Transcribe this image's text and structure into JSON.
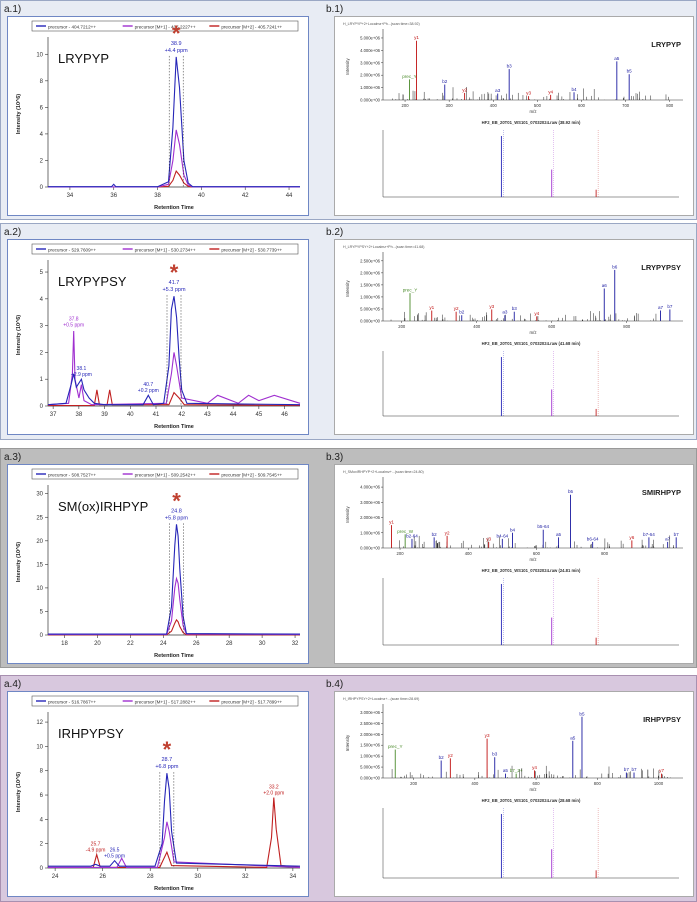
{
  "colors": {
    "precursor": "#2626b8",
    "m1": "#a030d0",
    "m2": "#c02020",
    "star": "#c04030",
    "b_ion": "#1a1aa0",
    "y_ion": "#c01010",
    "neutral": "#4a8a2a",
    "row_bg_blue": "#e8ecf4",
    "row_bg_gray": "#bdbdbd",
    "row_bg_pink": "#d8c8de"
  },
  "rows": [
    {
      "label_a": "a.1)",
      "label_b": "b.1)",
      "peptide": "LRYPYP",
      "legend": [
        "precursor - 404.7212++",
        "precursor [M+1] - 405.2227++",
        "precursor [M+2] - 405.7241++"
      ],
      "peak_label": [
        "38.9",
        "+4.4 ppm"
      ],
      "spectrum_header": "H_LRYPYP+2+Localmz+Ph...(scan time=38.92)",
      "mirror_title": "HF2_EB_20T01_WS101_07032024.raw (38.92 min)"
    },
    {
      "label_a": "a.2)",
      "label_b": "b.2)",
      "peptide": "LRYPYPSY",
      "legend": [
        "precursor - 529.7609++",
        "precursor [M+1] - 530.2734++",
        "precursor [M+2] - 530.7739++"
      ],
      "peak_label": [
        "41.7",
        "+5.3 ppm"
      ],
      "side_peaks": [
        [
          "37.8",
          "+0.5 ppm"
        ],
        [
          "38.1",
          "+2.9 ppm"
        ],
        [
          "40.7",
          "+0.2 ppm"
        ]
      ],
      "spectrum_header": "H_LRYPYPSY+2+Localmz+Ph...(scan time=41.68)",
      "mirror_title": "HF2_EB_20T01_WS101_07032024.raw (41.68 min)"
    },
    {
      "label_a": "a.3)",
      "label_b": "b.3)",
      "peptide": "SM(ox)IRHPYP",
      "legend": [
        "precursor - 508.7527++",
        "precursor [M+1] - 509.2542++",
        "precursor [M+2] - 509.7545++"
      ],
      "peak_label": [
        "24.8",
        "+5.8 ppm"
      ],
      "spectrum_header": "H_SMoxIRHPYP+2+Localmz+...(scan time=24.80)",
      "mirror_title": "HF2_EB_20T01_WS101_07032024.raw (24.81 min)"
    },
    {
      "label_a": "a.4)",
      "label_b": "b.4)",
      "peptide": "IRHPYPSY",
      "legend": [
        "precursor - 516.7867++",
        "precursor [M+1] - 517.2882++",
        "precursor [M+2] - 517.7899++"
      ],
      "peak_label": [
        "28.7",
        "+6.8 ppm"
      ],
      "side_peaks": [
        [
          "25.7",
          "-4.9 ppm"
        ],
        [
          "26.5",
          "+0.5 ppm"
        ],
        [
          "33.2",
          "+2.0 ppm"
        ]
      ],
      "spectrum_header": "H_IRHPYPSY+2+Localmz+...(scan time=28.69)",
      "mirror_title": "HF2_EB_20T01_WS101_07032024.raw (28.68 min)"
    }
  ],
  "chart_data": [
    {
      "type": "line",
      "panel": "a.1",
      "title": "",
      "xlabel": "Retention Time",
      "ylabel": "Intensity (10^6)",
      "xlim": [
        33,
        44.5
      ],
      "ylim": [
        0,
        11
      ],
      "x_ticks": [
        34,
        36,
        38,
        40,
        42,
        44
      ],
      "y_ticks": [
        0,
        2,
        4,
        6,
        8,
        10
      ],
      "series": [
        {
          "name": "precursor - 404.7212++",
          "x": [
            33,
            35.9,
            36.0,
            36.1,
            38.0,
            38.5,
            38.7,
            38.85,
            39.0,
            39.2,
            39.4,
            39.6,
            44.5
          ],
          "y": [
            0.02,
            0.02,
            0.2,
            0.02,
            0.02,
            0.4,
            4.5,
            9.8,
            7.5,
            2.0,
            0.3,
            0.02,
            0.02
          ]
        },
        {
          "name": "precursor [M+1] - 405.2227++",
          "x": [
            33,
            38.0,
            38.5,
            38.7,
            38.85,
            39.0,
            39.2,
            39.4,
            39.6,
            44.5
          ],
          "y": [
            0.01,
            0.01,
            0.2,
            2.0,
            4.3,
            3.2,
            0.9,
            0.15,
            0.01,
            0.01
          ]
        },
        {
          "name": "precursor [M+2] - 405.7241++",
          "x": [
            33,
            38.0,
            38.5,
            38.7,
            38.85,
            39.0,
            39.2,
            39.4,
            39.6,
            44.5
          ],
          "y": [
            0.0,
            0.0,
            0.05,
            0.5,
            1.2,
            0.9,
            0.3,
            0.05,
            0.0,
            0.0
          ]
        }
      ]
    },
    {
      "type": "line",
      "panel": "a.2",
      "title": "",
      "xlabel": "Retention Time",
      "ylabel": "Intensity (10^6)",
      "xlim": [
        36.8,
        46.6
      ],
      "ylim": [
        0,
        5.3
      ],
      "x_ticks": [
        37,
        38,
        39,
        40,
        41,
        42,
        43,
        44,
        45,
        46
      ],
      "y_ticks": [
        0,
        1,
        2,
        3,
        4,
        5
      ],
      "series": [
        {
          "name": "precursor - 529.7609++",
          "x": [
            36.8,
            37.5,
            37.7,
            37.8,
            37.9,
            38.1,
            38.2,
            38.4,
            38.6,
            39.0,
            40.5,
            40.7,
            40.9,
            41.3,
            41.5,
            41.6,
            41.7,
            41.8,
            41.9,
            42.0,
            42.2,
            46.6
          ],
          "y": [
            0.05,
            0.1,
            0.8,
            1.2,
            0.7,
            1.0,
            0.6,
            0.3,
            0.1,
            0.05,
            0.05,
            0.4,
            0.05,
            0.1,
            1.5,
            3.6,
            4.1,
            3.3,
            1.8,
            0.6,
            0.1,
            0.05
          ]
        },
        {
          "name": "precursor [M+1] - 530.2734++",
          "x": [
            36.8,
            37.6,
            37.75,
            37.8,
            37.85,
            38.0,
            38.1,
            38.2,
            38.5,
            41.4,
            41.6,
            41.7,
            41.8,
            42.0,
            43.0,
            43.4,
            44.2,
            44.6,
            45.0,
            45.6,
            46.6
          ],
          "y": [
            0.05,
            0.1,
            1.2,
            2.8,
            1.0,
            0.3,
            0.8,
            0.2,
            0.05,
            0.1,
            1.2,
            2.0,
            1.5,
            0.3,
            0.1,
            0.4,
            0.1,
            0.4,
            0.2,
            0.4,
            0.1
          ]
        },
        {
          "name": "precursor [M+2] - 530.7739++",
          "x": [
            36.8,
            38.6,
            38.7,
            38.8,
            39.1,
            39.2,
            39.3,
            41.5,
            41.7,
            41.9,
            42.1,
            46.6
          ],
          "y": [
            0.02,
            0.02,
            0.6,
            0.05,
            0.05,
            0.6,
            0.05,
            0.05,
            0.5,
            0.3,
            0.05,
            0.02
          ]
        }
      ]
    },
    {
      "type": "line",
      "panel": "a.3",
      "title": "",
      "xlabel": "Retention Time",
      "ylabel": "Intensity (10^6)",
      "xlim": [
        17,
        32.3
      ],
      "ylim": [
        0,
        31
      ],
      "x_ticks": [
        18,
        20,
        22,
        24,
        26,
        28,
        30,
        32
      ],
      "y_ticks": [
        0,
        5,
        10,
        15,
        20,
        25,
        30
      ],
      "series": [
        {
          "name": "precursor - 508.7527++",
          "x": [
            17,
            24.2,
            24.5,
            24.7,
            24.8,
            24.9,
            25.0,
            25.2,
            25.4,
            32.3
          ],
          "y": [
            0.2,
            0.2,
            6.0,
            19.0,
            23.5,
            21.0,
            14.0,
            4.0,
            0.3,
            0.2
          ]
        },
        {
          "name": "precursor [M+1] - 509.2542++",
          "x": [
            17,
            24.2,
            24.5,
            24.7,
            24.8,
            24.9,
            25.0,
            25.2,
            25.4,
            32.3
          ],
          "y": [
            0.1,
            0.1,
            3.0,
            10.0,
            12.0,
            11.0,
            7.5,
            2.0,
            0.2,
            0.1
          ]
        },
        {
          "name": "precursor [M+2] - 509.7545++",
          "x": [
            17,
            24.2,
            24.5,
            24.7,
            24.8,
            24.9,
            25.0,
            25.2,
            25.4,
            32.3
          ],
          "y": [
            0.05,
            0.05,
            0.8,
            2.5,
            3.2,
            2.8,
            1.8,
            0.5,
            0.05,
            0.05
          ]
        }
      ]
    },
    {
      "type": "line",
      "panel": "a.4",
      "title": "",
      "xlabel": "Retention Time",
      "ylabel": "Intensity (10^6)",
      "xlim": [
        23.7,
        34.3
      ],
      "ylim": [
        0,
        12.5
      ],
      "x_ticks": [
        24,
        26,
        28,
        30,
        32,
        34
      ],
      "y_ticks": [
        0,
        2,
        4,
        6,
        8,
        10,
        12
      ],
      "series": [
        {
          "name": "precursor - 516.7867++",
          "x": [
            23.7,
            25.5,
            25.7,
            25.9,
            26.3,
            26.5,
            26.7,
            28.2,
            28.5,
            28.6,
            28.7,
            28.8,
            28.9,
            29.1,
            34.3
          ],
          "y": [
            0.15,
            0.15,
            0.3,
            0.15,
            0.15,
            0.6,
            0.15,
            0.15,
            2.0,
            5.5,
            7.8,
            6.5,
            3.0,
            0.4,
            0.15
          ]
        },
        {
          "name": "precursor [M+1] - 517.2882++",
          "x": [
            23.7,
            26.6,
            26.8,
            27.0,
            28.3,
            28.6,
            28.7,
            28.8,
            29.0,
            34.3
          ],
          "y": [
            0.05,
            0.05,
            0.8,
            0.05,
            0.05,
            2.5,
            3.8,
            3.0,
            0.5,
            0.05
          ]
        },
        {
          "name": "precursor [M+2] - 517.7899++",
          "x": [
            23.7,
            25.6,
            25.75,
            25.9,
            28.4,
            28.7,
            28.9,
            32.9,
            33.1,
            33.2,
            33.3,
            33.5,
            34.3
          ],
          "y": [
            0.05,
            0.05,
            1.1,
            0.05,
            0.05,
            1.3,
            0.2,
            0.05,
            2.5,
            5.8,
            3.2,
            0.2,
            0.05
          ]
        }
      ]
    },
    {
      "type": "bar",
      "panel": "b.1",
      "xlabel": "m/z",
      "ylabel": "Intensity",
      "xlim": [
        150,
        830
      ],
      "ylim": [
        0,
        5200000.0
      ],
      "x_ticks": [
        200,
        300,
        400,
        500,
        600,
        700,
        800
      ],
      "y_ticks": [
        "0.000e+00",
        "1.000e+06",
        "2.000e+06",
        "3.000e+06",
        "4.000e+06",
        "5.000e+06"
      ],
      "annotated": [
        {
          "x": 226,
          "y": 4600000.0,
          "label": "y1",
          "ion": "y"
        },
        {
          "x": 210,
          "y": 1600000.0,
          "label": "prec_Y",
          "ion": "n"
        },
        {
          "x": 290,
          "y": 1200000.0,
          "label": "b2",
          "ion": "b"
        },
        {
          "x": 335,
          "y": 550000.0,
          "label": "y2",
          "ion": "y"
        },
        {
          "x": 410,
          "y": 500000.0,
          "label": "a3",
          "ion": "b"
        },
        {
          "x": 436,
          "y": 2400000.0,
          "label": "b3",
          "ion": "b"
        },
        {
          "x": 480,
          "y": 300000.0,
          "label": "y3",
          "ion": "y"
        },
        {
          "x": 530,
          "y": 400000.0,
          "label": "y4",
          "ion": "y"
        },
        {
          "x": 583,
          "y": 600000.0,
          "label": "b4",
          "ion": "b"
        },
        {
          "x": 680,
          "y": 3000000.0,
          "label": "a5",
          "ion": "b"
        },
        {
          "x": 708,
          "y": 2000000.0,
          "label": "b5",
          "ion": "b"
        }
      ]
    },
    {
      "type": "bar",
      "panel": "b.2",
      "xlabel": "m/z",
      "ylabel": "Intensity",
      "xlim": [
        150,
        950
      ],
      "ylim": [
        0,
        2800000.0
      ],
      "x_ticks": [
        200,
        400,
        600,
        800
      ],
      "y_ticks": [
        "0.000e+00",
        "5.000e+05",
        "1.000e+06",
        "1.500e+06",
        "2.000e+06",
        "2.500e+06"
      ],
      "annotated": [
        {
          "x": 222,
          "y": 1200000.0,
          "label": "prec_Y",
          "ion": "n"
        },
        {
          "x": 280,
          "y": 450000.0,
          "label": "y1",
          "ion": "y"
        },
        {
          "x": 345,
          "y": 400000.0,
          "label": "y2",
          "ion": "y"
        },
        {
          "x": 360,
          "y": 250000.0,
          "label": "b2",
          "ion": "b"
        },
        {
          "x": 440,
          "y": 500000.0,
          "label": "y3",
          "ion": "y"
        },
        {
          "x": 475,
          "y": 250000.0,
          "label": "a3",
          "ion": "b"
        },
        {
          "x": 500,
          "y": 400000.0,
          "label": "b3",
          "ion": "b"
        },
        {
          "x": 560,
          "y": 200000.0,
          "label": "y4",
          "ion": "y"
        },
        {
          "x": 740,
          "y": 1400000.0,
          "label": "a6",
          "ion": "b"
        },
        {
          "x": 768,
          "y": 2200000.0,
          "label": "b6",
          "ion": "b"
        },
        {
          "x": 890,
          "y": 450000.0,
          "label": "a7",
          "ion": "b"
        },
        {
          "x": 915,
          "y": 500000.0,
          "label": "b7",
          "ion": "b"
        }
      ]
    },
    {
      "type": "bar",
      "panel": "b.3",
      "xlabel": "m/z",
      "ylabel": "Intensity",
      "xlim": [
        150,
        1030
      ],
      "ylim": [
        0,
        4400000.0
      ],
      "x_ticks": [
        200,
        400,
        600,
        800
      ],
      "y_ticks": [
        "0.000e+00",
        "1.000e+06",
        "2.000e+06",
        "3.000e+06",
        "4.000e+06"
      ],
      "annotated": [
        {
          "x": 175,
          "y": 1500000.0,
          "label": "y1",
          "ion": "y"
        },
        {
          "x": 215,
          "y": 900000.0,
          "label": "prec_W",
          "ion": "n"
        },
        {
          "x": 235,
          "y": 600000.0,
          "label": "b2-64",
          "ion": "b"
        },
        {
          "x": 300,
          "y": 700000.0,
          "label": "b2",
          "ion": "b"
        },
        {
          "x": 338,
          "y": 800000.0,
          "label": "y2",
          "ion": "y"
        },
        {
          "x": 460,
          "y": 400000.0,
          "label": "y3",
          "ion": "y"
        },
        {
          "x": 500,
          "y": 600000.0,
          "label": "b4-64",
          "ion": "b"
        },
        {
          "x": 530,
          "y": 1000000.0,
          "label": "b4",
          "ion": "b"
        },
        {
          "x": 620,
          "y": 1200000.0,
          "label": "b5-64",
          "ion": "b"
        },
        {
          "x": 665,
          "y": 700000.0,
          "label": "a5",
          "ion": "b"
        },
        {
          "x": 700,
          "y": 3500000.0,
          "label": "b5",
          "ion": "b"
        },
        {
          "x": 765,
          "y": 400000.0,
          "label": "b6-64",
          "ion": "b"
        },
        {
          "x": 880,
          "y": 500000.0,
          "label": "y6",
          "ion": "y"
        },
        {
          "x": 930,
          "y": 700000.0,
          "label": "b7-64",
          "ion": "b"
        },
        {
          "x": 985,
          "y": 400000.0,
          "label": "a7",
          "ion": "b"
        },
        {
          "x": 1010,
          "y": 700000.0,
          "label": "b7",
          "ion": "b"
        }
      ]
    },
    {
      "type": "bar",
      "panel": "b.4",
      "xlabel": "m/z",
      "ylabel": "Intensity",
      "xlim": [
        100,
        1080
      ],
      "ylim": [
        0,
        3200000.0
      ],
      "x_ticks": [
        200,
        400,
        600,
        800,
        1000
      ],
      "y_ticks": [
        "0.000e+00",
        "5.000e+05",
        "1.000e+06",
        "1.500e+06",
        "2.000e+06",
        "2.500e+06",
        "3.000e+06"
      ],
      "annotated": [
        {
          "x": 140,
          "y": 1300000.0,
          "label": "prec_Y",
          "ion": "n"
        },
        {
          "x": 290,
          "y": 800000.0,
          "label": "b2",
          "ion": "b"
        },
        {
          "x": 320,
          "y": 900000.0,
          "label": "y2",
          "ion": "y"
        },
        {
          "x": 440,
          "y": 1800000.0,
          "label": "y3",
          "ion": "y"
        },
        {
          "x": 465,
          "y": 950000.0,
          "label": "b3",
          "ion": "b"
        },
        {
          "x": 500,
          "y": 200000.0,
          "label": "a5",
          "ion": "b"
        },
        {
          "x": 535,
          "y": 200000.0,
          "label": "b7_2+",
          "ion": "n"
        },
        {
          "x": 595,
          "y": 350000.0,
          "label": "y4",
          "ion": "y"
        },
        {
          "x": 720,
          "y": 1700000.0,
          "label": "a5",
          "ion": "b"
        },
        {
          "x": 750,
          "y": 2800000.0,
          "label": "b5",
          "ion": "b"
        },
        {
          "x": 895,
          "y": 250000.0,
          "label": "b7",
          "ion": "b"
        },
        {
          "x": 920,
          "y": 250000.0,
          "label": "b7",
          "ion": "b"
        },
        {
          "x": 1010,
          "y": 200000.0,
          "label": "y7",
          "ion": "y"
        }
      ]
    }
  ]
}
